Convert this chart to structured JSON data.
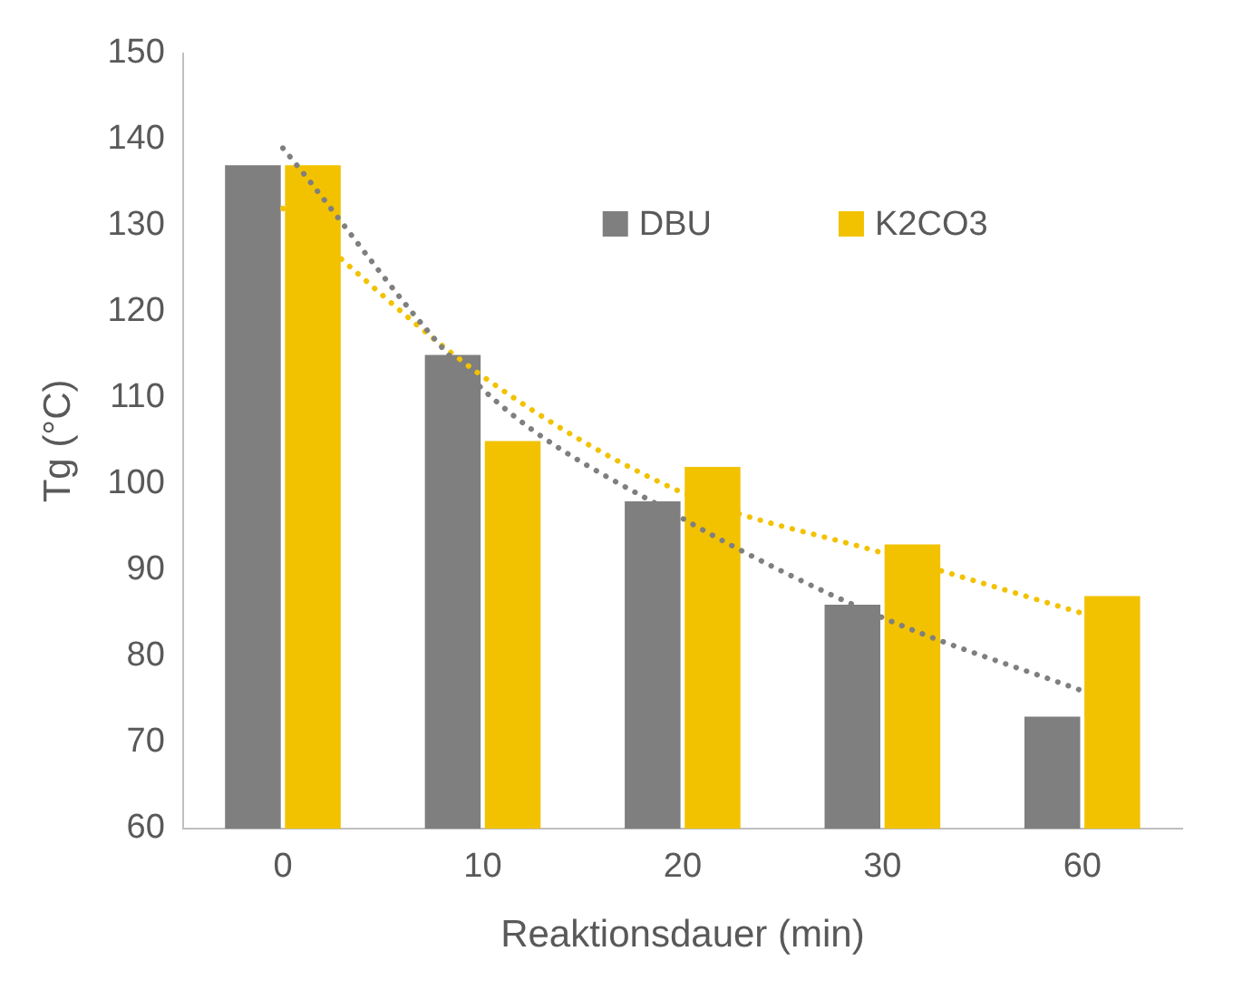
{
  "chart_data": {
    "type": "bar",
    "xlabel": "Reaktionsdauer (min)",
    "ylabel": "Tg (°C)",
    "categories": [
      "0",
      "10",
      "20",
      "30",
      "60"
    ],
    "series": [
      {
        "name": "DBU",
        "color": "#7f7f7f",
        "values": [
          137,
          115,
          98,
          86,
          73
        ]
      },
      {
        "name": "K2CO3",
        "color": "#f2c200",
        "values": [
          137,
          105,
          102,
          93,
          87
        ]
      },
      {
        "type": "line",
        "color": "#7f7f7f",
        "x": [
          "0",
          "10",
          "20",
          "30",
          "60"
        ],
        "values": [
          139,
          111,
          96,
          84.5,
          76
        ],
        "line_style": "dotted",
        "marker": "none"
      },
      {
        "type": "line",
        "color": "#f2c200",
        "x": [
          "0",
          "10",
          "20",
          "30",
          "60"
        ],
        "values": [
          132,
          112.5,
          99,
          92,
          85
        ],
        "line_style": "dotted",
        "marker": "none"
      }
    ],
    "ylim": [
      60,
      150
    ],
    "yticks": [
      60,
      70,
      80,
      90,
      100,
      110,
      120,
      130,
      140,
      150
    ],
    "grid": false,
    "legend": "top right"
  }
}
